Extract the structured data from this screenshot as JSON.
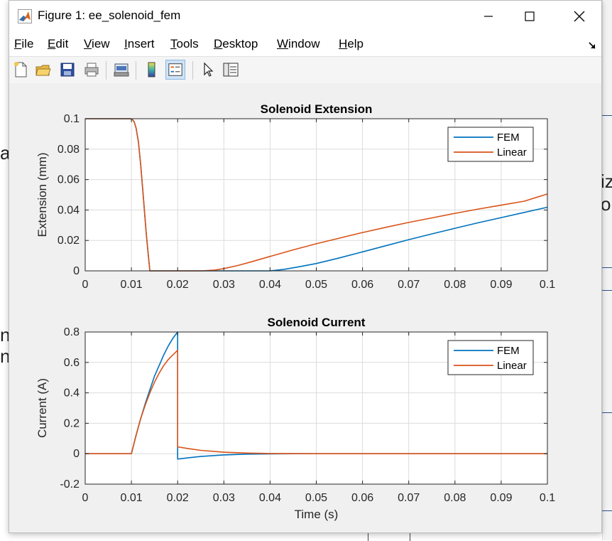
{
  "window": {
    "title": "Figure 1: ee_solenoid_fem"
  },
  "menu": [
    {
      "label": "File",
      "accel": "F",
      "rest": "ile"
    },
    {
      "label": "Edit",
      "accel": "E",
      "rest": "dit"
    },
    {
      "label": "View",
      "accel": "V",
      "rest": "iew"
    },
    {
      "label": "Insert",
      "accel": "I",
      "rest": "nsert"
    },
    {
      "label": "Tools",
      "accel": "T",
      "rest": "ools"
    },
    {
      "label": "Desktop",
      "accel": "D",
      "rest": "esktop"
    },
    {
      "label": "Window",
      "accel": "W",
      "rest": "indow"
    },
    {
      "label": "Help",
      "accel": "H",
      "rest": "elp"
    }
  ],
  "toolbar": {
    "icons": [
      "new-figure-icon",
      "open-file-icon",
      "save-icon",
      "print-icon",
      "print-preview-icon",
      "colorbar-icon",
      "legend-icon",
      "edit-plot-arrow-icon",
      "property-inspector-icon"
    ]
  },
  "colors": {
    "fem": "#0072BD",
    "linear": "#D95319"
  },
  "chart_data": [
    {
      "type": "line",
      "title": "Solenoid Extension",
      "xlabel": "",
      "ylabel": "Extension (mm)",
      "xlim": [
        0,
        0.1
      ],
      "ylim": [
        0,
        0.1
      ],
      "xticks": [
        "0",
        "0.01",
        "0.02",
        "0.03",
        "0.04",
        "0.05",
        "0.06",
        "0.07",
        "0.08",
        "0.09",
        "0.1"
      ],
      "yticks": [
        "0",
        "0.02",
        "0.04",
        "0.06",
        "0.08",
        "0.1"
      ],
      "grid": true,
      "legend_position": "top-right",
      "series": [
        {
          "name": "FEM",
          "x": [
            0,
            0.0098,
            0.0102,
            0.0106,
            0.011,
            0.0115,
            0.012,
            0.0126,
            0.0132,
            0.0138,
            0.014,
            0.02,
            0.03,
            0.035,
            0.04,
            0.043,
            0.046,
            0.05,
            0.055,
            0.06,
            0.065,
            0.07,
            0.075,
            0.08,
            0.085,
            0.09,
            0.095,
            0.1
          ],
          "y": [
            0.1,
            0.1,
            0.0995,
            0.098,
            0.094,
            0.085,
            0.07,
            0.048,
            0.025,
            0.006,
            0,
            0,
            0,
            0,
            0,
            0.001,
            0.0025,
            0.0048,
            0.0085,
            0.0125,
            0.0165,
            0.0205,
            0.0243,
            0.028,
            0.0316,
            0.035,
            0.0384,
            0.0418
          ]
        },
        {
          "name": "Linear",
          "x": [
            0,
            0.0098,
            0.0102,
            0.0106,
            0.011,
            0.0115,
            0.012,
            0.0126,
            0.0132,
            0.0138,
            0.014,
            0.02,
            0.025,
            0.028,
            0.03,
            0.033,
            0.036,
            0.04,
            0.045,
            0.05,
            0.055,
            0.06,
            0.065,
            0.07,
            0.075,
            0.08,
            0.085,
            0.09,
            0.095,
            0.1
          ],
          "y": [
            0.1,
            0.1,
            0.0995,
            0.098,
            0.094,
            0.085,
            0.07,
            0.048,
            0.025,
            0.006,
            0,
            0,
            0,
            0.0005,
            0.0015,
            0.0035,
            0.006,
            0.0095,
            0.0138,
            0.0178,
            0.0215,
            0.0252,
            0.0286,
            0.0318,
            0.0348,
            0.0378,
            0.0406,
            0.0432,
            0.0458,
            0.0505
          ]
        }
      ]
    },
    {
      "type": "line",
      "title": "Solenoid Current",
      "xlabel": "Time (s)",
      "ylabel": "Current (A)",
      "xlim": [
        0,
        0.1
      ],
      "ylim": [
        -0.2,
        0.8
      ],
      "xticks": [
        "0",
        "0.01",
        "0.02",
        "0.03",
        "0.04",
        "0.05",
        "0.06",
        "0.07",
        "0.08",
        "0.09",
        "0.1"
      ],
      "yticks": [
        "-0.2",
        "0",
        "0.2",
        "0.4",
        "0.6",
        "0.8"
      ],
      "grid": true,
      "legend_position": "top-right",
      "series": [
        {
          "name": "FEM",
          "x": [
            0,
            0.01,
            0.011,
            0.012,
            0.013,
            0.014,
            0.015,
            0.016,
            0.017,
            0.018,
            0.019,
            0.02,
            0.02,
            0.022,
            0.025,
            0.03,
            0.035,
            0.04,
            0.045,
            0.05,
            0.1
          ],
          "y": [
            0,
            0,
            0.12,
            0.23,
            0.33,
            0.42,
            0.51,
            0.58,
            0.65,
            0.71,
            0.76,
            0.8,
            -0.035,
            -0.028,
            -0.018,
            -0.008,
            -0.003,
            -0.001,
            0,
            0,
            0
          ]
        },
        {
          "name": "Linear",
          "x": [
            0,
            0.01,
            0.011,
            0.012,
            0.013,
            0.014,
            0.015,
            0.016,
            0.017,
            0.018,
            0.019,
            0.02,
            0.02,
            0.022,
            0.025,
            0.03,
            0.035,
            0.04,
            0.045,
            0.05,
            0.1
          ],
          "y": [
            0,
            0,
            0.12,
            0.23,
            0.32,
            0.4,
            0.47,
            0.53,
            0.58,
            0.62,
            0.65,
            0.68,
            0.045,
            0.035,
            0.022,
            0.01,
            0.004,
            0.0015,
            0.0005,
            0,
            0
          ]
        }
      ]
    }
  ]
}
